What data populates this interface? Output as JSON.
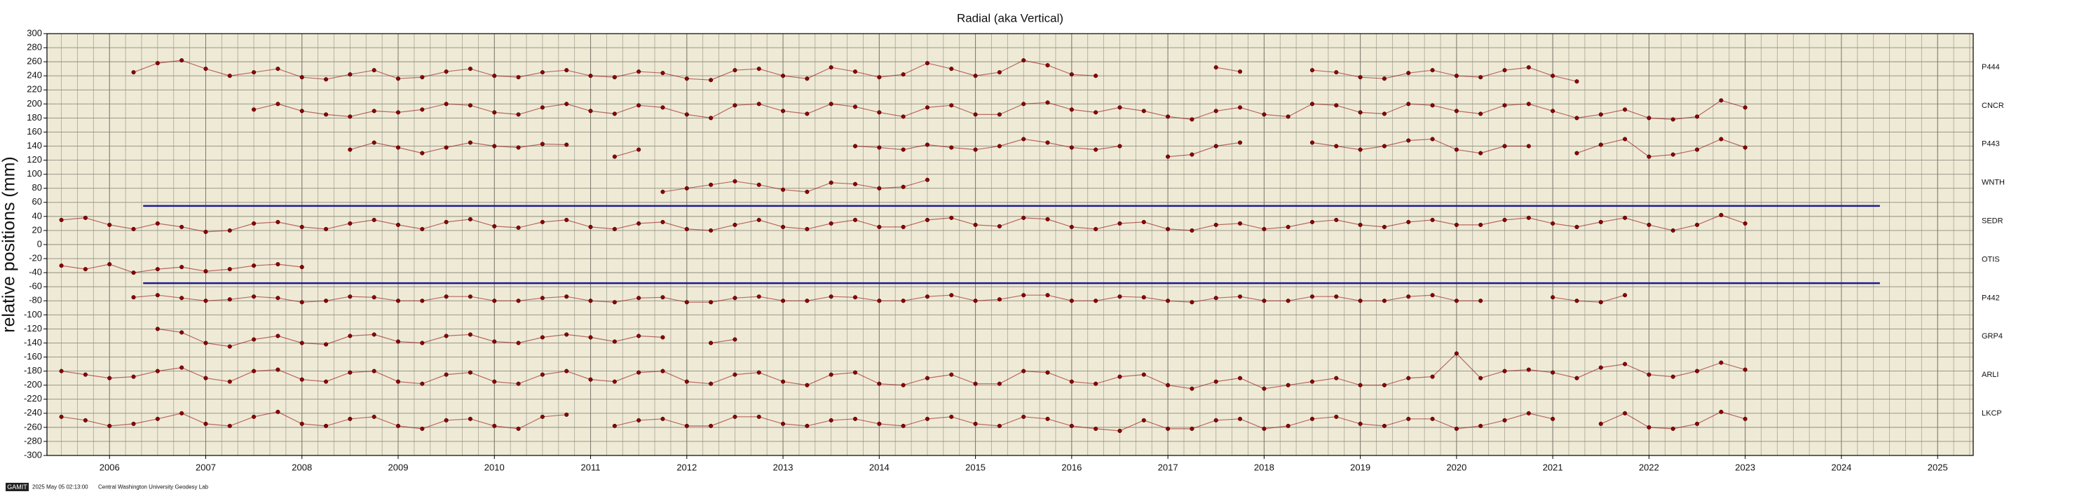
{
  "chart_data": {
    "type": "scatter",
    "title": "Radial (aka Vertical)",
    "y_label": "relative positions (mm)",
    "xlim": [
      2005.35,
      2025.37
    ],
    "xticks": [
      2006,
      2007,
      2008,
      2009,
      2010,
      2011,
      2012,
      2013,
      2014,
      2015,
      2016,
      2017,
      2018,
      2019,
      2020,
      2021,
      2022,
      2023,
      2024,
      2025
    ],
    "ylim": [
      -300,
      300
    ],
    "yticks": [
      -300,
      -280,
      -260,
      -240,
      -220,
      -200,
      -180,
      -160,
      -140,
      -120,
      -100,
      -80,
      -60,
      -40,
      -20,
      0,
      20,
      40,
      60,
      80,
      100,
      120,
      140,
      160,
      180,
      200,
      220,
      240,
      260,
      280,
      300
    ],
    "grid": true,
    "background": "#efead6",
    "x": [
      2005.5,
      2005.75,
      2006,
      2006.25,
      2006.5,
      2006.75,
      2007,
      2007.25,
      2007.5,
      2007.75,
      2008,
      2008.25,
      2008.5,
      2008.75,
      2009,
      2009.25,
      2009.5,
      2009.75,
      2010,
      2010.25,
      2010.5,
      2010.75,
      2011,
      2011.25,
      2011.5,
      2011.75,
      2012,
      2012.25,
      2012.5,
      2012.75,
      2013,
      2013.25,
      2013.5,
      2013.75,
      2014,
      2014.25,
      2014.5,
      2014.75,
      2015,
      2015.25,
      2015.5,
      2015.75,
      2016,
      2016.25,
      2016.5,
      2016.75,
      2017,
      2017.25,
      2017.5,
      2017.75,
      2018,
      2018.25,
      2018.5,
      2018.75,
      2019,
      2019.25,
      2019.5,
      2019.75,
      2020,
      2020.25,
      2020.5,
      2020.75,
      2021,
      2021.25,
      2021.5,
      2021.75,
      2022,
      2022.25,
      2022.5,
      2022.75,
      2023
    ],
    "series": [
      {
        "name": "P444",
        "color": "#8b0000",
        "values": [
          null,
          null,
          null,
          245,
          258,
          262,
          250,
          240,
          245,
          250,
          238,
          235,
          242,
          248,
          236,
          238,
          246,
          250,
          240,
          238,
          245,
          248,
          240,
          238,
          246,
          244,
          236,
          234,
          248,
          250,
          240,
          236,
          252,
          246,
          238,
          242,
          258,
          250,
          240,
          245,
          262,
          255,
          242,
          240,
          null,
          null,
          null,
          null,
          252,
          246,
          null,
          null,
          248,
          245,
          238,
          236,
          244,
          248,
          240,
          238,
          248,
          252,
          240,
          232,
          null,
          null,
          null,
          null,
          null,
          null,
          null
        ]
      },
      {
        "name": "CNCR",
        "color": "#8b0000",
        "values": [
          null,
          null,
          null,
          null,
          null,
          null,
          null,
          null,
          192,
          200,
          190,
          185,
          182,
          190,
          188,
          192,
          200,
          198,
          188,
          185,
          195,
          200,
          190,
          186,
          198,
          195,
          185,
          180,
          198,
          200,
          190,
          186,
          200,
          196,
          188,
          182,
          195,
          198,
          185,
          185,
          200,
          202,
          192,
          188,
          195,
          190,
          182,
          178,
          190,
          195,
          185,
          182,
          200,
          198,
          188,
          186,
          200,
          198,
          190,
          186,
          198,
          200,
          190,
          180,
          185,
          192,
          180,
          178,
          182,
          205,
          195
        ]
      },
      {
        "name": "P443",
        "color": "#8b0000",
        "values": [
          null,
          null,
          null,
          null,
          null,
          null,
          null,
          null,
          null,
          null,
          null,
          null,
          135,
          145,
          138,
          130,
          138,
          145,
          140,
          138,
          143,
          142,
          null,
          125,
          135,
          null,
          null,
          null,
          null,
          null,
          null,
          null,
          null,
          140,
          138,
          135,
          142,
          138,
          135,
          140,
          150,
          145,
          138,
          135,
          140,
          null,
          125,
          128,
          140,
          145,
          null,
          null,
          145,
          140,
          135,
          140,
          148,
          150,
          135,
          130,
          140,
          140,
          null,
          130,
          142,
          150,
          125,
          128,
          135,
          150,
          138
        ]
      },
      {
        "name": "WNTH",
        "color": "#8b0000",
        "values": [
          null,
          null,
          null,
          null,
          null,
          null,
          null,
          null,
          null,
          null,
          null,
          null,
          null,
          null,
          null,
          null,
          null,
          null,
          null,
          null,
          null,
          null,
          null,
          null,
          null,
          75,
          80,
          85,
          90,
          85,
          78,
          75,
          88,
          86,
          80,
          82,
          92,
          null,
          null,
          null,
          null,
          null,
          null,
          null,
          null,
          null,
          null,
          null,
          null,
          null,
          null,
          null,
          null,
          null,
          null,
          null,
          null,
          null,
          null,
          null,
          null,
          null,
          null,
          null,
          null,
          null,
          null,
          null,
          null,
          null,
          null
        ]
      },
      {
        "name": "SEDR",
        "color": "#8b0000",
        "values": [
          35,
          38,
          28,
          22,
          30,
          25,
          18,
          20,
          30,
          32,
          25,
          22,
          30,
          35,
          28,
          22,
          32,
          36,
          26,
          24,
          32,
          35,
          25,
          22,
          30,
          32,
          22,
          20,
          28,
          35,
          25,
          22,
          30,
          35,
          25,
          25,
          35,
          38,
          28,
          26,
          38,
          36,
          25,
          22,
          30,
          32,
          22,
          20,
          28,
          30,
          22,
          25,
          32,
          35,
          28,
          25,
          32,
          35,
          28,
          28,
          35,
          38,
          30,
          25,
          32,
          38,
          28,
          20,
          28,
          42,
          30
        ]
      },
      {
        "name": "OTIS",
        "color": "#8b0000",
        "values": [
          -30,
          -35,
          -28,
          -40,
          -35,
          -32,
          -38,
          -35,
          -30,
          -28,
          -32,
          null,
          null,
          null,
          null,
          null,
          null,
          null,
          null,
          null,
          null,
          null,
          null,
          null,
          null,
          null,
          null,
          null,
          null,
          null,
          null,
          null,
          null,
          null,
          null,
          null,
          null,
          null,
          null,
          null,
          null,
          null,
          null,
          null,
          null,
          null,
          null,
          null,
          null,
          null,
          null,
          null,
          null,
          null,
          null,
          null,
          null,
          null,
          null,
          null,
          null,
          null,
          null,
          null,
          null,
          null,
          null,
          null,
          null,
          null,
          null
        ]
      },
      {
        "name": "P442",
        "color": "#8b0000",
        "values": [
          null,
          null,
          null,
          -75,
          -72,
          -76,
          -80,
          -78,
          -74,
          -76,
          -82,
          -80,
          -74,
          -75,
          -80,
          -80,
          -74,
          -74,
          -80,
          -80,
          -76,
          -74,
          -80,
          -82,
          -76,
          -75,
          -82,
          -82,
          -76,
          -74,
          -80,
          -80,
          -74,
          -75,
          -80,
          -80,
          -74,
          -72,
          -80,
          -78,
          -72,
          -72,
          -80,
          -80,
          -74,
          -75,
          -80,
          -82,
          -76,
          -74,
          -80,
          -80,
          -74,
          -74,
          -80,
          -80,
          -74,
          -72,
          -80,
          -80,
          null,
          null,
          -75,
          -80,
          -82,
          -72,
          null,
          null,
          null,
          null,
          null
        ]
      },
      {
        "name": "GRP4",
        "color": "#8b0000",
        "values": [
          null,
          null,
          null,
          null,
          -120,
          -125,
          -140,
          -145,
          -135,
          -130,
          -140,
          -142,
          -130,
          -128,
          -138,
          -140,
          -130,
          -128,
          -138,
          -140,
          -132,
          -128,
          -132,
          -138,
          -130,
          -132,
          null,
          -140,
          -135,
          null,
          null,
          null,
          null,
          null,
          null,
          null,
          null,
          null,
          null,
          null,
          null,
          null,
          null,
          null,
          null,
          null,
          null,
          null,
          null,
          null,
          null,
          null,
          null,
          null,
          null,
          null,
          null,
          null,
          null,
          null,
          null,
          null,
          null,
          null,
          null,
          null,
          null,
          null,
          null,
          null,
          null
        ]
      },
      {
        "name": "ARLI",
        "color": "#8b0000",
        "values": [
          -180,
          -185,
          -190,
          -188,
          -180,
          -175,
          -190,
          -195,
          -180,
          -178,
          -192,
          -195,
          -182,
          -180,
          -195,
          -198,
          -185,
          -182,
          -195,
          -198,
          -185,
          -180,
          -192,
          -195,
          -182,
          -180,
          -195,
          -198,
          -185,
          -182,
          -195,
          -200,
          -185,
          -182,
          -198,
          -200,
          -190,
          -185,
          -198,
          -198,
          -180,
          -182,
          -195,
          -198,
          -188,
          -185,
          -200,
          -205,
          -195,
          -190,
          -205,
          -200,
          -195,
          -190,
          -200,
          -200,
          -190,
          -188,
          -155,
          -190,
          -180,
          -178,
          -182,
          -190,
          -175,
          -170,
          -185,
          -188,
          -180,
          -168,
          -178
        ]
      },
      {
        "name": "LKCP",
        "color": "#8b0000",
        "values": [
          -245,
          -250,
          -258,
          -255,
          -248,
          -240,
          -255,
          -258,
          -245,
          -238,
          -255,
          -258,
          -248,
          -245,
          -258,
          -262,
          -250,
          -248,
          -258,
          -262,
          -245,
          -242,
          null,
          -258,
          -250,
          -248,
          -258,
          -258,
          -245,
          -245,
          -255,
          -258,
          -250,
          -248,
          -255,
          -258,
          -248,
          -245,
          -255,
          -258,
          -245,
          -248,
          -258,
          -262,
          -265,
          -250,
          -262,
          -262,
          -250,
          -248,
          -262,
          -258,
          -248,
          -245,
          -255,
          -258,
          -248,
          -248,
          -262,
          -258,
          -250,
          -240,
          -248,
          null,
          -255,
          -240,
          -260,
          -262,
          -255,
          -238,
          -248
        ]
      }
    ],
    "reference_lines": [
      {
        "y": 55,
        "x": [
          2006.35,
          2024.4
        ],
        "color": "#1c1c8f"
      },
      {
        "y": -55,
        "x": [
          2006.35,
          2024.4
        ],
        "color": "#1c1c8f"
      }
    ]
  },
  "footer": {
    "badge": "GAMIT",
    "timestamp": "2025 May 05 02:13:00",
    "credit": "Central Washington University Geodesy Lab"
  }
}
